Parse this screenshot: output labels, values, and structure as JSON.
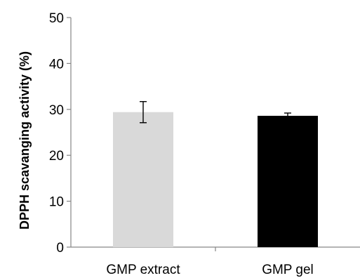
{
  "chart_data": {
    "type": "bar",
    "title": "",
    "xlabel": "",
    "ylabel": "DPPH scavanging activity (%)",
    "ylim": [
      0,
      50
    ],
    "yticks": [
      0,
      10,
      20,
      30,
      40,
      50
    ],
    "categories": [
      "GMP extract",
      "GMP gel"
    ],
    "values": [
      29.4,
      28.6
    ],
    "errors": [
      2.3,
      0.6
    ],
    "colors": [
      "#d9d9d9",
      "#000000"
    ],
    "grid": false,
    "legend": "none"
  }
}
